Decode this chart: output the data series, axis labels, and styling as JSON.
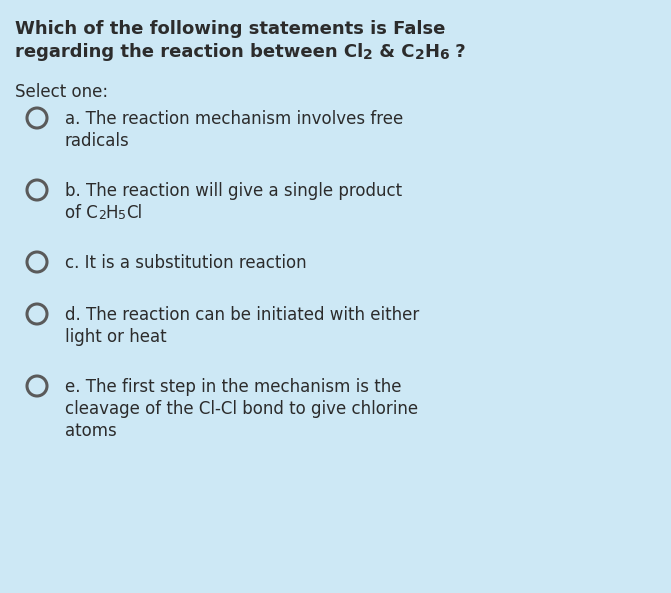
{
  "background_color": "#cde8f5",
  "text_color": "#2c2c2c",
  "circle_edge_color": "#5a5a5a",
  "circle_face_color": "#cde8f5",
  "font_size_title": 13.0,
  "font_size_body": 12.0,
  "font_size_sub": 9.0,
  "title_line1": "Which of the following statements is False",
  "title_line2_part1": "regarding the reaction between Cl",
  "title_line2_part2": " & C",
  "title_line2_h": "H",
  "title_line2_end": " ?",
  "select_text": "Select one:",
  "option_a_l1": "a. The reaction mechanism involves free",
  "option_a_l2": "radicals",
  "option_b_l1": "b. The reaction will give a single product",
  "option_b_l2_pre": "of C",
  "option_b_l2_h": "H",
  "option_b_l2_end": "Cl",
  "option_c_l1": "c. It is a substitution reaction",
  "option_d_l1": "d. The reaction can be initiated with either",
  "option_d_l2": "light or heat",
  "option_e_l1": "e. The first step in the mechanism is the",
  "option_e_l2": "cleavage of the Cl-Cl bond to give chlorine",
  "option_e_l3": "atoms"
}
